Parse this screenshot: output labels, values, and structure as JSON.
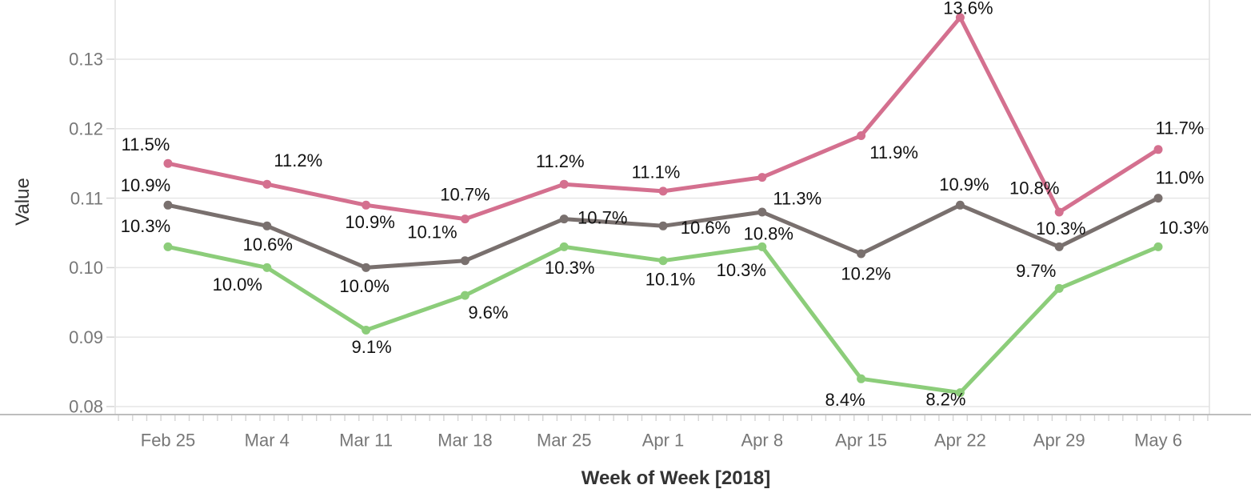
{
  "chart_data": {
    "type": "line",
    "categories": [
      "Feb 25",
      "Mar 4",
      "Mar 11",
      "Mar 18",
      "Mar 25",
      "Apr 1",
      "Apr 8",
      "Apr 15",
      "Apr 22",
      "Apr 29",
      "May 6"
    ],
    "series": [
      {
        "name": "Pink series",
        "color": "#D4708F",
        "values": [
          0.115,
          0.112,
          0.109,
          0.107,
          0.112,
          0.111,
          0.113,
          0.119,
          0.136,
          0.108,
          0.117
        ],
        "labels": [
          "11.5%",
          "11.2%",
          "10.9%",
          "10.7%",
          "11.2%",
          "11.1%",
          "11.3%",
          "11.9%",
          "13.6%",
          "10.8%",
          "11.7%"
        ],
        "label_offsets": [
          [
            -28,
            -24
          ],
          [
            39,
            -30
          ],
          [
            5,
            21
          ],
          [
            0,
            -31
          ],
          [
            -5,
            -29
          ],
          [
            -9,
            -24
          ],
          [
            44,
            26
          ],
          [
            41,
            21
          ],
          [
            10,
            -12
          ],
          [
            -31,
            -30
          ],
          [
            27,
            -27
          ]
        ]
      },
      {
        "name": "Gray series",
        "color": "#79706E",
        "values": [
          0.109,
          0.106,
          0.1,
          0.101,
          0.107,
          0.106,
          0.108,
          0.102,
          0.109,
          0.103,
          0.11
        ],
        "labels": [
          "10.9%",
          "10.6%",
          "10.0%",
          "10.1%",
          "10.7%",
          "10.6%",
          "10.8%",
          "10.2%",
          "10.9%",
          "10.3%",
          "11.0%"
        ],
        "label_offsets": [
          [
            -28,
            -25
          ],
          [
            1,
            23
          ],
          [
            -2,
            23
          ],
          [
            -41,
            -36
          ],
          [
            48,
            -2
          ],
          [
            53,
            2
          ],
          [
            8,
            27
          ],
          [
            6,
            25
          ],
          [
            5,
            -26
          ],
          [
            2,
            -23
          ],
          [
            27,
            -26
          ]
        ]
      },
      {
        "name": "Green series",
        "color": "#8CCD7A",
        "values": [
          0.103,
          0.1,
          0.091,
          0.096,
          0.103,
          0.101,
          0.103,
          0.084,
          0.082,
          0.097,
          0.103
        ],
        "labels": [
          "10.3%",
          "10.0%",
          "9.1%",
          "9.6%",
          "10.3%",
          "10.1%",
          "10.3%",
          "8.4%",
          "8.2%",
          "9.7%",
          "10.3%"
        ],
        "label_offsets": [
          [
            -28,
            -26
          ],
          [
            -37,
            21
          ],
          [
            7,
            21
          ],
          [
            29,
            21
          ],
          [
            7,
            26
          ],
          [
            9,
            23
          ],
          [
            -26,
            29
          ],
          [
            -20,
            26
          ],
          [
            -18,
            8
          ],
          [
            -29,
            -22
          ],
          [
            32,
            -24
          ]
        ]
      }
    ],
    "x_axis": {
      "title": "Week of Week [2018]",
      "tick_labels": [
        "Feb 25",
        "Mar 4",
        "Mar 11",
        "Mar 18",
        "Mar 25",
        "Apr 1",
        "Apr 8",
        "Apr 15",
        "Apr 22",
        "Apr 29",
        "May 6"
      ]
    },
    "y_axis": {
      "title": "Value",
      "min": 0.08,
      "max": 0.13,
      "ticks": [
        0.13,
        0.12,
        0.11,
        0.1,
        0.09,
        0.08
      ],
      "tick_labels": [
        "0.13",
        "0.12",
        "0.11",
        "0.10",
        "0.09",
        "0.08"
      ]
    },
    "grid": true,
    "legend": "none",
    "value_format": "percent"
  },
  "styles": {
    "grid_color": "#e6e6e6",
    "axis_border_color": "#e0e0e0",
    "axis_bottom_line_color": "#bdbdbd",
    "tick_mark_color": "#d4d4d4",
    "tick_label_color": "#777777",
    "data_label_color": "#111111",
    "axis_title_color": "#333333",
    "background": "#ffffff"
  }
}
